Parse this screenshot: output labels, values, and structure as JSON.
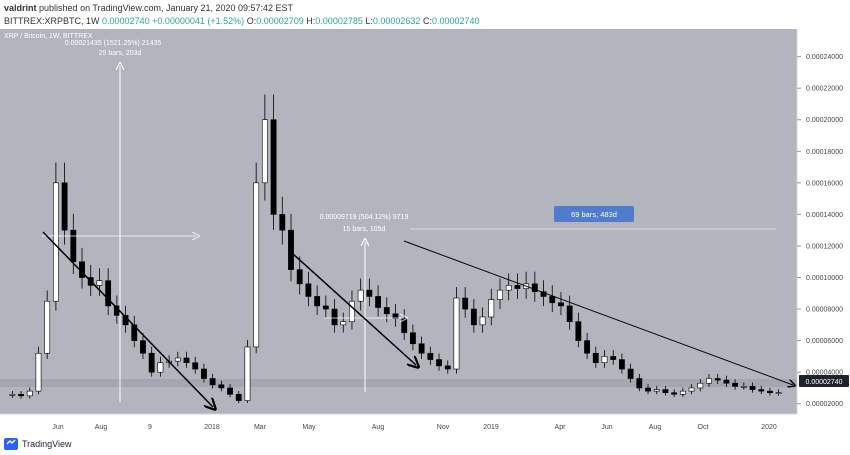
{
  "header": {
    "author": "valdrint",
    "published_text": "published on TradingView.com, January 21, 2020 09:57:42 EST",
    "symbol": "BITTREX:XRPBTC, 1W",
    "last": "0.00002740",
    "change": "+0.00000041 (+1.52%)",
    "o_label": "O:",
    "o": "0.00002709",
    "h_label": "H:",
    "h": "0.00002785",
    "l_label": "L:",
    "l": "0.00002632",
    "c_label": "C:",
    "c": "0.00002740"
  },
  "legend": {
    "series": "XRP / Bitcoin, 1W, BITTREX"
  },
  "footer": {
    "brand": "TradingView"
  },
  "colors": {
    "background": "#b2b5be",
    "up_candle": "#ffffff",
    "down_candle": "#000000",
    "price_badge": "#1e222d",
    "measure_badge": "#4f7ccc",
    "annotation": "#ffffff"
  },
  "chart_data": {
    "type": "candlestick",
    "title": "XRP / Bitcoin, 1W, BITTREX",
    "xlabel": "",
    "ylabel": "",
    "x_ticks": [
      "Jun",
      "Aug",
      "9",
      "2018",
      "Mar",
      "May",
      "Aug",
      "Nov",
      "2019",
      "Apr",
      "Jun",
      "Aug",
      "Oct",
      "2020"
    ],
    "y_ticks": [
      "0.00024000",
      "0.00022000",
      "0.00020000",
      "0.00018000",
      "0.00016000",
      "0.00014000",
      "0.00012000",
      "0.00010000",
      "0.00008000",
      "0.00006000",
      "0.00004000",
      "0.00002000"
    ],
    "ylim": [
      1.35e-05,
      0.0002575
    ],
    "last_price": "0.00002740",
    "ohlc_close_approx": [
      2.6e-05,
      2.5e-05,
      2.8e-05,
      5.2e-05,
      8.5e-05,
      0.00016,
      0.00013,
      0.00011,
      0.0001,
      9.5e-05,
      9.8e-05,
      8.2e-05,
      7.6e-05,
      7e-05,
      6e-05,
      5.2e-05,
      4e-05,
      4.6e-05,
      4.7e-05,
      4.9e-05,
      4.6e-05,
      4.2e-05,
      3.6e-05,
      3.2e-05,
      3e-05,
      2.6e-05,
      2.2e-05,
      5.6e-05,
      0.00016,
      0.0002,
      0.00014,
      0.00013,
      0.000105,
      9.6e-05,
      8.8e-05,
      8.2e-05,
      8e-05,
      7e-05,
      7.2e-05,
      8.5e-05,
      9.2e-05,
      8.8e-05,
      8.1e-05,
      7.7e-05,
      7.4e-05,
      6.5e-05,
      5.8e-05,
      5.2e-05,
      4.8e-05,
      4.4e-05,
      4.2e-05,
      8.7e-05,
      8e-05,
      7e-05,
      7.5e-05,
      8.6e-05,
      9.2e-05,
      9.5e-05,
      9.3e-05,
      9.6e-05,
      9.1e-05,
      8.8e-05,
      8.4e-05,
      8.2e-05,
      7.2e-05,
      6e-05,
      5.2e-05,
      4.6e-05,
      5e-05,
      4.8e-05,
      4.2e-05,
      3.6e-05,
      3e-05,
      2.8e-05,
      2.9e-05,
      2.7e-05,
      2.6e-05,
      2.8e-05,
      3e-05,
      3.3e-05,
      3.6e-05,
      3.5e-05,
      3.3e-05,
      3.1e-05,
      3.1e-05,
      2.9e-05,
      2.8e-05,
      2.7e-05,
      2.7e-05
    ],
    "annotations": [
      {
        "type": "measure",
        "label_top": "0.00021435 (1521.25%) 21435",
        "label_bottom": "29 bars, 203d"
      },
      {
        "type": "measure",
        "label_top": "0.00009719 (504.12%) 9719",
        "label_bottom": "15 bars, 105d"
      },
      {
        "type": "date_range",
        "label": "69 bars, 483d"
      },
      {
        "type": "trendline",
        "description": "descending resistance 1"
      },
      {
        "type": "trendline",
        "description": "descending resistance 2"
      },
      {
        "type": "trendline",
        "description": "descending resistance 3"
      },
      {
        "type": "trendline",
        "description": "long-term descending resistance"
      }
    ]
  }
}
